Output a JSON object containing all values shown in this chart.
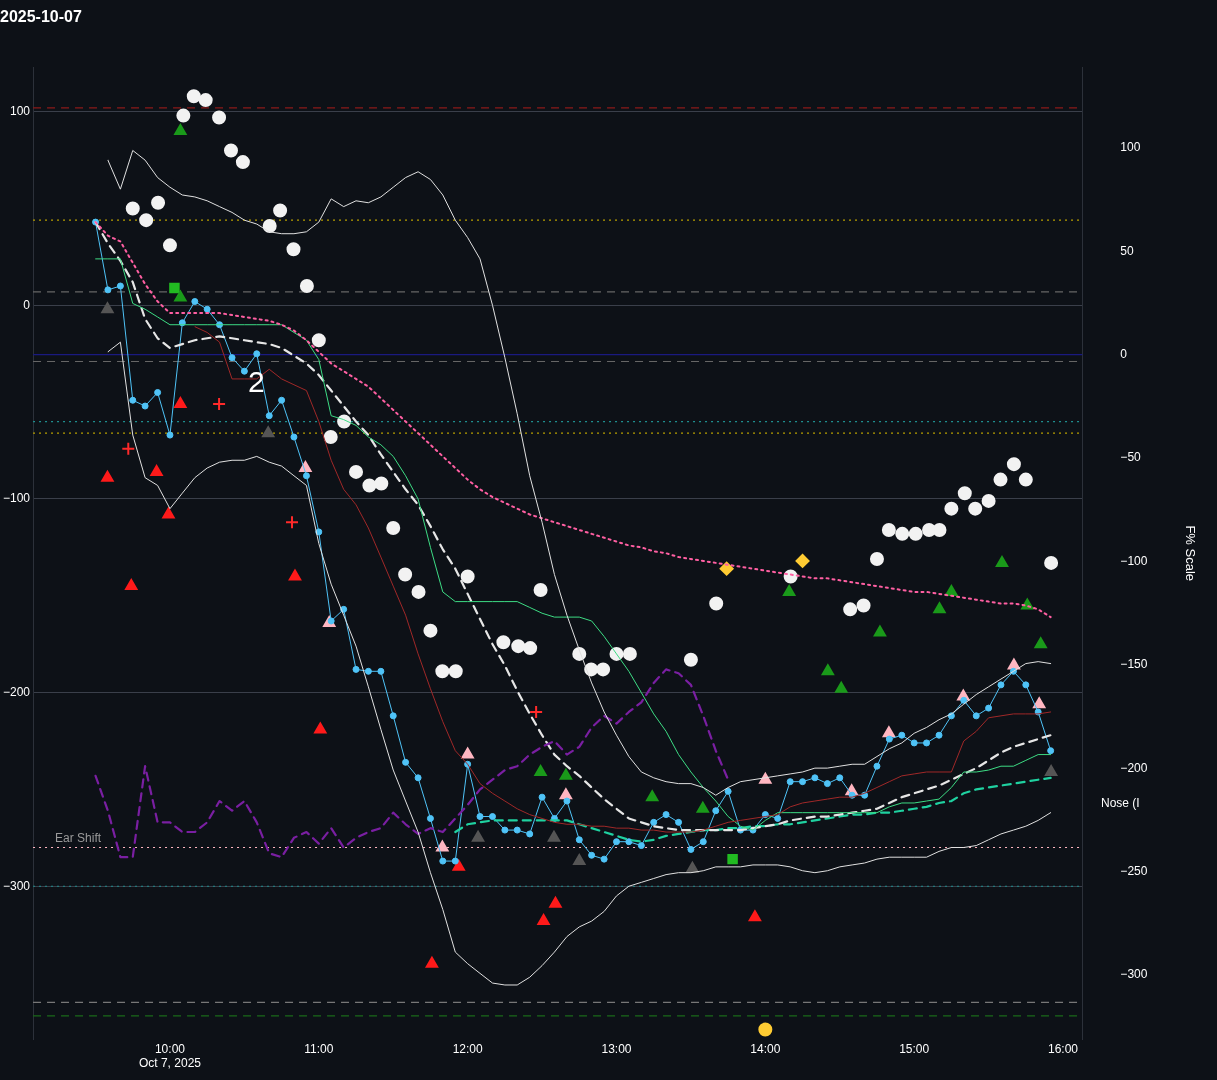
{
  "chart_data": {
    "type": "line",
    "title": "2025-10-07",
    "y2label": "F% Scale",
    "annotations": [
      "2",
      "Nose (I"
    ],
    "x": [
      9.5,
      9.583,
      9.667,
      9.75,
      9.833,
      9.917,
      10,
      10.083,
      10.167,
      10.25,
      10.333,
      10.417,
      10.5,
      10.583,
      10.667,
      10.75,
      10.833,
      10.917,
      11,
      11.083,
      11.167,
      11.25,
      11.333,
      11.417,
      11.5,
      11.583,
      11.667,
      11.75,
      11.833,
      11.917,
      12,
      12.083,
      12.167,
      12.25,
      12.333,
      12.417,
      12.5,
      12.583,
      12.667,
      12.75,
      12.833,
      12.917,
      13,
      13.083,
      13.167,
      13.25,
      13.333,
      13.417,
      13.5,
      13.583,
      13.667,
      13.75,
      13.833,
      13.917,
      14,
      14.083,
      14.167,
      14.25,
      14.333,
      14.417,
      14.5,
      14.583,
      14.667,
      14.75,
      14.833,
      14.917,
      15,
      15.083,
      15.167,
      15.25,
      15.333,
      15.417,
      15.5,
      15.583,
      15.667,
      15.75,
      15.833,
      15.917
    ],
    "xlim": [
      9.08,
      16.13
    ],
    "xticks": [
      {
        "value": 10,
        "label": "10:00\nOct 7, 2025"
      },
      {
        "value": 11,
        "label": "11:00"
      },
      {
        "value": 12,
        "label": "12:00"
      },
      {
        "value": 13,
        "label": "13:00"
      },
      {
        "value": 14,
        "label": "14:00"
      },
      {
        "value": 15,
        "label": "15:00"
      },
      {
        "value": 16,
        "label": "16:00"
      }
    ],
    "ylim": [
      -379,
      123
    ],
    "yticks": [
      -300,
      -200,
      -100,
      0,
      100
    ],
    "y2lim": [
      -331,
      139
    ],
    "y2ticks": [
      -300,
      -250,
      -200,
      -150,
      -100,
      -50,
      0,
      50,
      100
    ],
    "grid": "y",
    "series": [
      {
        "color": "#e0e0e0",
        "line_style": "solid",
        "values": [
          null,
          75,
          60,
          80,
          75,
          66,
          61,
          57,
          56,
          54,
          51,
          48,
          44,
          42,
          38,
          37,
          37,
          38,
          43,
          55,
          51,
          54,
          53,
          56,
          61,
          66,
          69,
          65,
          57,
          44,
          35,
          24,
          0,
          -27,
          -56,
          -88,
          -112,
          -139,
          -160,
          -178,
          -195,
          -210,
          -222,
          -233,
          -241,
          -244,
          -246,
          -247,
          -247,
          -249,
          -253,
          -249,
          -246,
          -245,
          -244,
          -243,
          -242,
          -241,
          -239,
          -239,
          -238,
          -237,
          -237,
          -233,
          -229,
          -226,
          -221,
          -218,
          -214,
          -211,
          -206,
          -201,
          -197,
          -193,
          -189,
          -185,
          -184,
          -185
        ]
      },
      {
        "color": "#e0e0e0",
        "line_style": "solid",
        "values": [
          null,
          -24,
          -19,
          -67,
          -89,
          -93,
          -105,
          -97,
          -89,
          -84,
          -81,
          -80,
          -80,
          -78,
          -81,
          -83,
          -88,
          -93,
          -123,
          -144,
          -160,
          -176,
          -197,
          -219,
          -240,
          -256,
          -272,
          -293,
          -312,
          -334,
          -340,
          -345,
          -350,
          -351,
          -351,
          -347,
          -341,
          -334,
          -326,
          -321,
          -318,
          -313,
          -305,
          -300,
          -298,
          -296,
          -294,
          -293,
          -293,
          -292,
          -290,
          -290,
          -290,
          -289,
          -289,
          -289,
          -290,
          -292,
          -293,
          -292,
          -290,
          -289,
          -288,
          -286,
          -285,
          -285,
          -285,
          -285,
          -282,
          -280,
          -280,
          -279,
          -276,
          -273,
          -271,
          -269,
          -266,
          -262
        ]
      },
      {
        "color": "#7a1fa2",
        "line_style": "dashed",
        "values": [
          -243,
          -261,
          -285,
          -285,
          -238,
          -267,
          -267,
          -272,
          -272,
          -267,
          -256,
          -261,
          -256,
          -267,
          -283,
          -285,
          -275,
          -272,
          -278,
          -270,
          -280,
          -275,
          -272,
          -270,
          -262,
          -268,
          -273,
          -270,
          -272,
          -265,
          -258,
          -250,
          -245,
          -240,
          -238,
          -232,
          -228,
          -225,
          -232,
          -228,
          -218,
          -212,
          -216,
          -210,
          -205,
          -195,
          -188,
          -190,
          -196,
          -212,
          -230,
          -245,
          null,
          null,
          null,
          null,
          null,
          null,
          null,
          null,
          null,
          null,
          null,
          null,
          null,
          null,
          null,
          null,
          null,
          null,
          null,
          null,
          null,
          null,
          null,
          null,
          null,
          null
        ]
      },
      {
        "color": "#a02828",
        "line_style": "solid",
        "values": [
          null,
          null,
          null,
          null,
          null,
          null,
          null,
          null,
          -11,
          -14,
          -19,
          -38,
          -38,
          -38,
          -33,
          -38,
          -41,
          -44,
          -60,
          -80,
          -95,
          -103,
          -115,
          -130,
          -145,
          -160,
          -180,
          -198,
          -215,
          -230,
          -237,
          -247,
          -252,
          -256,
          -260,
          -263,
          -265,
          -267,
          -268,
          -268,
          -269,
          -269,
          -270,
          -270,
          -271,
          -271,
          -272,
          -272,
          -272,
          -271,
          -269,
          -267,
          -266,
          -265,
          -264,
          -263,
          -259,
          -257,
          -256,
          -255,
          -254,
          -254,
          -252,
          -249,
          -246,
          -243,
          -242,
          -241,
          -241,
          -241,
          -225,
          -220,
          -213,
          -212,
          -211,
          -211,
          -211,
          -210
        ]
      },
      {
        "color": "#ff5fa2",
        "line_style": "dotted",
        "values": [
          43,
          36,
          33,
          22,
          11,
          2,
          -4,
          -4,
          -4,
          -4,
          -4,
          -5,
          -6,
          -7,
          -8,
          -10,
          -13,
          -18,
          -24,
          -30,
          -34,
          -38,
          -42,
          -48,
          -54,
          -60,
          -66,
          -72,
          -78,
          -84,
          -90,
          -95,
          -99,
          -102,
          -105,
          -108,
          -110,
          -112,
          -114,
          -116,
          -118,
          -120,
          -122,
          -124,
          -125,
          -127,
          -128,
          -130,
          -131,
          -132,
          -133,
          -134,
          -135,
          -136,
          -137,
          -138,
          -139,
          -140,
          -141,
          -141,
          -142,
          -143,
          -144,
          -145,
          -146,
          -147,
          -148,
          -148,
          -149,
          -150,
          -151,
          -152,
          -153,
          -154,
          -154,
          -155,
          -157,
          -161
        ]
      },
      {
        "color": "#3ddc84",
        "line_style": "solid",
        "values": [
          24,
          24,
          24,
          1,
          -2,
          -6,
          -10,
          -10,
          -10,
          -10,
          -10,
          -10,
          -10,
          -10,
          -10,
          -10,
          -14,
          -18,
          -28,
          -57,
          -59,
          -62,
          -68,
          -72,
          -78,
          -88,
          -100,
          -125,
          -148,
          -153,
          -153,
          -153,
          -153,
          -153,
          -153,
          -156,
          -159,
          -161,
          -161,
          -161,
          -163,
          -171,
          -180,
          -189,
          -200,
          -211,
          -220,
          -232,
          -241,
          -249,
          -256,
          -264,
          -269,
          -271,
          -266,
          -262,
          -262,
          -262,
          -262,
          -262,
          -262,
          -262,
          -262,
          -262,
          -259,
          -257,
          -257,
          -256,
          -255,
          -249,
          -241,
          -241,
          -240,
          -238,
          -238,
          -235,
          -232,
          -232
        ]
      },
      {
        "color": "#e6e6e6",
        "line_style": "dashed",
        "values": [
          43,
          32,
          23,
          12,
          -7,
          -17,
          -22,
          -20,
          -18,
          -17,
          -16,
          -17,
          -18,
          -19,
          -20,
          -22,
          -26,
          -30,
          -36,
          -44,
          -52,
          -60,
          -67,
          -77,
          -86,
          -95,
          -103,
          -114,
          -126,
          -136,
          -149,
          -162,
          -175,
          -186,
          -199,
          -211,
          -222,
          -232,
          -238,
          -243,
          -249,
          -255,
          -260,
          -265,
          -267,
          -269,
          -270,
          -271,
          -271,
          -271,
          -271,
          -271,
          -271,
          -270,
          -269,
          -268,
          -266,
          -265,
          -264,
          -264,
          -263,
          -262,
          -261,
          -260,
          -257,
          -254,
          -252,
          -250,
          -248,
          -245,
          -242,
          -239,
          -235,
          -231,
          -228,
          -226,
          -224,
          -222
        ]
      },
      {
        "color": "#1fd1a0",
        "line_style": "dashed",
        "values": [
          null,
          null,
          null,
          null,
          null,
          null,
          null,
          null,
          null,
          null,
          null,
          null,
          null,
          null,
          null,
          null,
          null,
          null,
          null,
          null,
          null,
          null,
          null,
          null,
          null,
          null,
          null,
          null,
          null,
          -272,
          -268,
          -267,
          -266,
          -266,
          -266,
          -266,
          -266,
          -266,
          -266,
          -268,
          -270,
          -272,
          -274,
          -276,
          -277,
          -276,
          -274,
          -273,
          -272,
          -271,
          -271,
          -270,
          -270,
          -269,
          -269,
          -268,
          -268,
          -267,
          -266,
          -265,
          -264,
          -263,
          -263,
          -262,
          -262,
          -261,
          -260,
          -259,
          -257,
          -256,
          -252,
          -250,
          -249,
          -248,
          -247,
          -246,
          -245,
          -244
        ]
      },
      {
        "color": "#4fc3f7",
        "line_style": "solid",
        "marker": "circle",
        "values": [
          43,
          8,
          10,
          -49,
          -52,
          -45,
          -67,
          -9,
          2,
          -2,
          -10,
          -27,
          -34,
          -25,
          -57,
          -49,
          -68,
          -88,
          -117,
          -163,
          -157,
          -188,
          -189,
          -189,
          -212,
          -236,
          -244,
          -265,
          -287,
          -287,
          -237,
          -264,
          -264,
          -271,
          -271,
          -273,
          -254,
          -265,
          -256,
          -276,
          -284,
          -286,
          -277,
          -277,
          -279,
          -267,
          -263,
          -267,
          -281,
          -277,
          -261,
          -251,
          -271,
          -271,
          -263,
          -265,
          -246,
          -246,
          -244,
          -247,
          -244,
          -253,
          -253,
          -238,
          -224,
          -222,
          -226,
          -226,
          -222,
          -212,
          -204,
          -212,
          -208,
          -196,
          -189,
          -196,
          -210,
          -230
        ]
      },
      {
        "type": "scatter",
        "color": "#ffb6c1",
        "marker": "triangle",
        "x": [
          10.91,
          11.07,
          11.83,
          12.0,
          12.66,
          14.0,
          14.58,
          14.83,
          15.33,
          15.67,
          15.84
        ],
        "values": [
          -84,
          -164,
          -280,
          -232,
          -253,
          -245,
          -251,
          -221,
          -202,
          -186,
          -206
        ]
      },
      {
        "type": "scatter",
        "color": "#f2f2f2",
        "marker": "circle",
        "x": [
          10.16,
          10.24,
          10.33,
          10.09,
          10.41,
          10.49,
          9.75,
          9.92,
          9.84,
          10.0,
          10.74,
          10.67,
          10.83,
          10.92,
          11.0,
          11.17,
          11.08,
          11.25,
          11.34,
          11.42,
          11.5,
          11.58,
          11.67,
          12.0,
          11.75,
          11.83,
          11.92,
          12.24,
          12.34,
          12.42,
          12.75,
          12.83,
          12.91,
          13.0,
          13.09,
          13.5,
          12.49,
          13.67,
          14.17,
          14.66,
          14.57,
          14.75,
          14.83,
          14.92,
          15.01,
          15.1,
          15.17,
          15.25,
          15.34,
          15.41,
          15.5,
          15.58,
          15.67,
          15.75,
          15.92
        ],
        "values": [
          108,
          106,
          97,
          98,
          80,
          74,
          50,
          53,
          44,
          31,
          49,
          41,
          29,
          10,
          -18,
          -60,
          -68,
          -86,
          -93,
          -92,
          -115,
          -139,
          -148,
          -140,
          -168,
          -189,
          -189,
          -174,
          -176,
          -177,
          -180,
          -188,
          -188,
          -180,
          -180,
          -183,
          -147,
          -154,
          -140,
          -155,
          -157,
          -131,
          -116,
          -118,
          -118,
          -116,
          -116,
          -105,
          -97,
          -105,
          -101,
          -90,
          -82,
          -90,
          -133
        ]
      },
      {
        "type": "scatter",
        "color": "#ff1a1a",
        "marker": "triangle",
        "x": [
          10.84,
          11.01,
          11.76,
          12.51,
          12.59,
          11.94,
          13.93,
          9.58,
          9.74,
          10.07,
          9.91,
          9.99
        ],
        "values": [
          -140,
          -219,
          -340,
          -318,
          -309,
          -290,
          -316,
          -89,
          -145,
          -51,
          -86,
          -108
        ]
      },
      {
        "type": "scatter",
        "color": "#1a9a1a",
        "marker": "triangle",
        "x": [
          15.59,
          15.25,
          15.17,
          14.77,
          14.42,
          14.51,
          15.76,
          15.85,
          10.07,
          14.16,
          10.07,
          12.49,
          12.66,
          13.24,
          13.58
        ],
        "values": [
          -133,
          -148,
          -157,
          -169,
          -189,
          -198,
          -155,
          -175,
          90,
          -148,
          4,
          -241,
          -243,
          -254,
          -260
        ]
      },
      {
        "type": "scatter",
        "color": "#555555",
        "marker": "triangle",
        "x": [
          9.58,
          10.66,
          12.07,
          12.58,
          12.75,
          13.51,
          15.92
        ],
        "values": [
          -2,
          -66,
          -275,
          -275,
          -287,
          -291,
          -241
        ]
      },
      {
        "type": "scatter",
        "color": "#ff2a2a",
        "marker": "cross",
        "x": [
          10.33,
          9.72,
          10.82,
          12.46
        ],
        "values": [
          -51,
          -74,
          -112,
          -210
        ]
      },
      {
        "type": "scatter",
        "color": "#ffcc33",
        "marker": "diamond",
        "x": [
          13.74,
          14.25
        ],
        "values": [
          -136,
          -132
        ]
      },
      {
        "type": "scatter",
        "color": "#ffcc33",
        "marker": "circle",
        "x": [
          14.0
        ],
        "values": [
          -374
        ]
      },
      {
        "type": "scatter",
        "color": "#22bb22",
        "marker": "square",
        "x": [
          10.03,
          13.78
        ],
        "values": [
          9,
          -286
        ]
      }
    ],
    "ref_lines": [
      {
        "axis": "y",
        "value": 102,
        "color": "#8b1a1a",
        "line_style": "dashed"
      },
      {
        "axis": "y",
        "value": 44,
        "color": "#b8a000",
        "line_style": "dotted"
      },
      {
        "axis": "y",
        "value": 7,
        "color": "#666666",
        "line_style": "dashed"
      },
      {
        "axis": "y2",
        "value": 0,
        "color": "#1a1a80",
        "line_style": "solid"
      },
      {
        "axis": "y",
        "value": -29,
        "color": "#666666",
        "line_style": "dashed"
      },
      {
        "axis": "y",
        "value": -60,
        "color": "#1f8f8f",
        "line_style": "dotted"
      },
      {
        "axis": "y",
        "value": -66,
        "color": "#b8a000",
        "line_style": "dotted"
      },
      {
        "axis": "y",
        "value": -280,
        "color": "#ffb6c1",
        "line_style": "dotted",
        "label": "Ear Shift"
      },
      {
        "axis": "y",
        "value": -300,
        "color": "#1f8f8f",
        "line_style": "dotted"
      },
      {
        "axis": "y",
        "value": -360,
        "color": "#777777",
        "line_style": "dashed"
      },
      {
        "axis": "y",
        "value": -367,
        "color": "#1a6a1a",
        "line_style": "dashed"
      }
    ]
  }
}
